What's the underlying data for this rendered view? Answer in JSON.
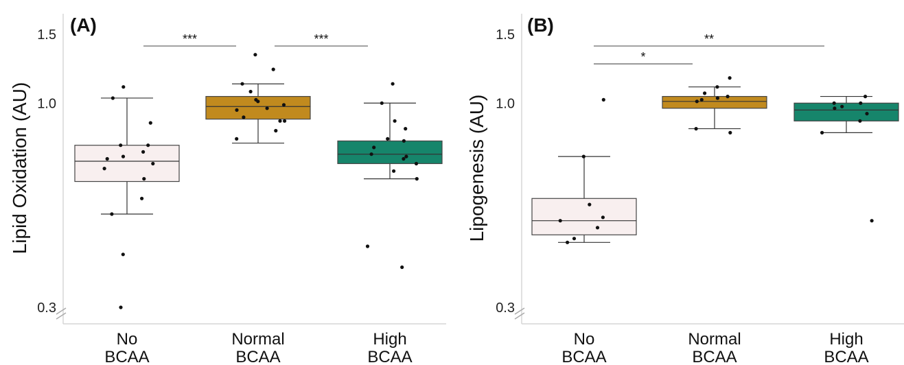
{
  "chart_data": [
    {
      "type": "box",
      "panel_label": "(A)",
      "ylabel": "Lipid Oxidation (AU)",
      "yscale": "log",
      "ylim": [
        0.28,
        1.6
      ],
      "yticks": [
        "1.5",
        "1.0",
        "0.3"
      ],
      "ytick_values": [
        1.5,
        1.0,
        0.3
      ],
      "axis_break": true,
      "categories": [
        [
          "No",
          "BCAA"
        ],
        [
          "Normal",
          "BCAA"
        ],
        [
          "High",
          "BCAA"
        ]
      ],
      "colors": [
        "#f8efef",
        "#c18a1e",
        "#16856b"
      ],
      "boxes": [
        {
          "whisker_low": 0.52,
          "q1": 0.63,
          "median": 0.71,
          "q3": 0.78,
          "whisker_high": 1.03
        },
        {
          "whisker_low": 0.79,
          "q1": 0.91,
          "median": 0.98,
          "q3": 1.04,
          "whisker_high": 1.12
        },
        {
          "whisker_low": 0.64,
          "q1": 0.7,
          "median": 0.74,
          "q3": 0.8,
          "whisker_high": 1.0
        }
      ],
      "points": [
        [
          1.1,
          1.03,
          0.89,
          0.78,
          0.78,
          0.75,
          0.73,
          0.72,
          0.7,
          0.68,
          0.64,
          0.57,
          0.52,
          0.41,
          0.3
        ],
        [
          1.33,
          1.22,
          1.12,
          1.07,
          1.02,
          1.01,
          0.99,
          0.97,
          0.96,
          0.92,
          0.9,
          0.9,
          0.85,
          0.81
        ],
        [
          1.12,
          1.0,
          0.9,
          0.86,
          0.81,
          0.8,
          0.77,
          0.74,
          0.73,
          0.72,
          0.7,
          0.67,
          0.64,
          0.43,
          0.38
        ]
      ],
      "significance": [
        {
          "from": 0,
          "to": 1,
          "label": "***",
          "y": 1.4
        },
        {
          "from": 1,
          "to": 2,
          "label": "***",
          "y": 1.4
        }
      ]
    },
    {
      "type": "box",
      "panel_label": "(B)",
      "ylabel": "Lipogenesis (AU)",
      "yscale": "log",
      "ylim": [
        0.28,
        1.6
      ],
      "yticks": [
        "1.5",
        "1.0",
        "0.3"
      ],
      "ytick_values": [
        1.5,
        1.0,
        0.3
      ],
      "axis_break": true,
      "categories": [
        [
          "No",
          "BCAA"
        ],
        [
          "Normal",
          "BCAA"
        ],
        [
          "High",
          "BCAA"
        ]
      ],
      "colors": [
        "#f8efef",
        "#c18a1e",
        "#16856b"
      ],
      "boxes": [
        {
          "whisker_low": 0.44,
          "q1": 0.46,
          "median": 0.5,
          "q3": 0.57,
          "whisker_high": 0.73
        },
        {
          "whisker_low": 0.86,
          "q1": 0.97,
          "median": 1.01,
          "q3": 1.04,
          "whisker_high": 1.1
        },
        {
          "whisker_low": 0.84,
          "q1": 0.9,
          "median": 0.96,
          "q3": 1.0,
          "whisker_high": 1.04
        }
      ],
      "points": [
        [
          1.02,
          0.73,
          0.55,
          0.51,
          0.5,
          0.48,
          0.45,
          0.44
        ],
        [
          1.16,
          1.1,
          1.06,
          1.04,
          1.03,
          1.02,
          1.01,
          0.86,
          0.84
        ],
        [
          1.04,
          1.0,
          1.0,
          0.98,
          0.97,
          0.94,
          0.9,
          0.84,
          0.5
        ]
      ],
      "significance": [
        {
          "from": 0,
          "to": 2,
          "label": "**",
          "y": 1.4
        },
        {
          "from": 0,
          "to": 1,
          "label": "*",
          "y": 1.26
        }
      ]
    }
  ]
}
